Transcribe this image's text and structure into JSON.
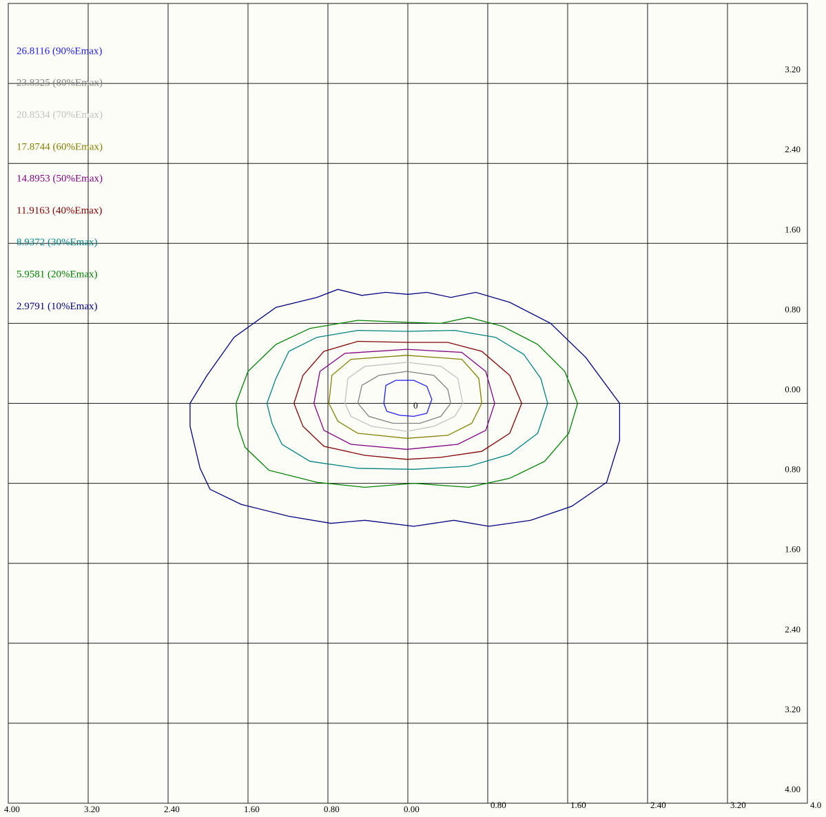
{
  "chart_data": {
    "type": "contour",
    "annotation": "0",
    "xlim": [
      -4,
      4
    ],
    "ylim": [
      -4,
      4
    ],
    "xticks": [
      {
        "value": -4,
        "label": "4.00"
      },
      {
        "value": -3.2,
        "label": "3.20"
      },
      {
        "value": -2.4,
        "label": "2.40"
      },
      {
        "value": -1.6,
        "label": "1.60"
      },
      {
        "value": -0.8,
        "label": "0.80"
      },
      {
        "value": 0,
        "label": "0.00"
      },
      {
        "value": 0.8,
        "label": "0.80"
      },
      {
        "value": 1.6,
        "label": "1.60"
      },
      {
        "value": 2.4,
        "label": "2.40"
      },
      {
        "value": 3.2,
        "label": "3.20"
      },
      {
        "value": 4,
        "label": "4.0"
      }
    ],
    "yticks": [
      {
        "value": 3.2,
        "label": "3.20"
      },
      {
        "value": 2.4,
        "label": "2.40"
      },
      {
        "value": 1.6,
        "label": "1.60"
      },
      {
        "value": 0.8,
        "label": "0.80"
      },
      {
        "value": 0,
        "label": "0.00"
      },
      {
        "value": -0.8,
        "label": "0.80"
      },
      {
        "value": -1.6,
        "label": "1.60"
      },
      {
        "value": -2.4,
        "label": "2.40"
      },
      {
        "value": -3.2,
        "label": "3.20"
      },
      {
        "value": -4,
        "label": "4.00"
      }
    ],
    "grid": true,
    "legend": "upper left",
    "series": [
      {
        "name": "26.8116 (90%Emax)",
        "color": "#1c1cf0",
        "x": [
          -0.24,
          -0.22,
          -0.12,
          0.06,
          0.19,
          0.24,
          0.19,
          0.06,
          -0.08,
          -0.21
        ],
        "y": [
          0,
          0.18,
          0.23,
          0.23,
          0.17,
          0.04,
          -0.1,
          -0.13,
          -0.12,
          -0.08
        ]
      },
      {
        "name": "23.8325 (80%Emax)",
        "color": "#808080",
        "x": [
          -0.5,
          -0.46,
          -0.29,
          -0.01,
          0.26,
          0.4,
          0.43,
          0.33,
          0.12,
          -0.15,
          -0.39
        ],
        "y": [
          0,
          0.18,
          0.28,
          0.32,
          0.28,
          0.14,
          0,
          -0.13,
          -0.2,
          -0.2,
          -0.13
        ]
      },
      {
        "name": "20.8534 (70%Emax)",
        "color": "#c0c0c0",
        "x": [
          -0.63,
          -0.6,
          -0.43,
          -0.01,
          0.33,
          0.5,
          0.55,
          0.47,
          0.26,
          -0.01,
          -0.36,
          -0.57
        ],
        "y": [
          0,
          0.25,
          0.37,
          0.41,
          0.37,
          0.25,
          0,
          -0.13,
          -0.23,
          -0.28,
          -0.23,
          -0.13
        ]
      },
      {
        "name": "17.8744 (60%Emax)",
        "color": "#808000",
        "x": [
          -0.79,
          -0.76,
          -0.57,
          -0.01,
          0.54,
          0.71,
          0.74,
          0.64,
          0.4,
          -0.01,
          -0.5,
          -0.7
        ],
        "y": [
          0,
          0.28,
          0.44,
          0.48,
          0.44,
          0.25,
          0,
          -0.2,
          -0.32,
          -0.35,
          -0.3,
          -0.18
        ]
      },
      {
        "name": "14.8953 (50%Emax)",
        "color": "#800080",
        "x": [
          -0.94,
          -0.88,
          -0.63,
          -0.01,
          0.54,
          0.78,
          0.87,
          0.78,
          0.5,
          -0.01,
          -0.57,
          -0.84
        ],
        "y": [
          0,
          0.32,
          0.5,
          0.54,
          0.51,
          0.32,
          0,
          -0.27,
          -0.41,
          -0.46,
          -0.41,
          -0.27
        ]
      },
      {
        "name": "11.9163 (40%Emax)",
        "color": "#800000",
        "x": [
          -1.14,
          -1.05,
          -0.84,
          -0.5,
          -0.01,
          0.4,
          0.74,
          1.02,
          1.14,
          1.02,
          0.74,
          0.33,
          -0.01,
          -0.43,
          -0.84,
          -1.05
        ],
        "y": [
          0,
          0.28,
          0.52,
          0.62,
          0.61,
          0.61,
          0.52,
          0.28,
          0,
          -0.3,
          -0.48,
          -0.54,
          -0.56,
          -0.52,
          -0.43,
          -0.23
        ]
      },
      {
        "name": "8.9372 (30%Emax)",
        "color": "#008080",
        "x": [
          -1.41,
          -1.32,
          -1.19,
          -0.91,
          -0.5,
          -0.01,
          0.47,
          0.88,
          1.16,
          1.33,
          1.4,
          1.3,
          1.02,
          0.61,
          0.06,
          -0.5,
          -0.98,
          -1.26,
          -1.36
        ],
        "y": [
          0,
          0.25,
          0.52,
          0.66,
          0.73,
          0.72,
          0.73,
          0.66,
          0.49,
          0.25,
          0,
          -0.3,
          -0.51,
          -0.63,
          -0.66,
          -0.65,
          -0.58,
          -0.41,
          -0.2
        ]
      },
      {
        "name": "5.9581 (20%Emax)",
        "color": "#008000",
        "x": [
          -1.72,
          -1.6,
          -1.32,
          -0.98,
          -0.5,
          -0.01,
          0.33,
          0.61,
          0.95,
          1.3,
          1.57,
          1.7,
          1.61,
          1.37,
          1.02,
          0.61,
          0.06,
          -0.43,
          -0.91,
          -1.39,
          -1.63,
          -1.7
        ],
        "y": [
          0,
          0.32,
          0.59,
          0.75,
          0.83,
          0.81,
          0.8,
          0.86,
          0.77,
          0.59,
          0.32,
          0,
          -0.3,
          -0.58,
          -0.75,
          -0.84,
          -0.8,
          -0.84,
          -0.79,
          -0.67,
          -0.44,
          -0.23
        ]
      },
      {
        "name": "2.9791 (10%Emax)",
        "color": "#000080",
        "x": [
          -2.18,
          -2.01,
          -1.74,
          -1.32,
          -0.91,
          -0.7,
          -0.46,
          -0.22,
          0,
          0.19,
          0.43,
          0.68,
          1.02,
          1.43,
          1.78,
          2.12,
          2.12,
          1.99,
          1.64,
          1.23,
          0.81,
          0.46,
          0.06,
          -0.43,
          -0.77,
          -1.19,
          -1.67,
          -1.98,
          -2.08,
          -2.18
        ],
        "y": [
          0,
          0.28,
          0.66,
          0.96,
          1.06,
          1.14,
          1.08,
          1.11,
          1.09,
          1.11,
          1.06,
          1.11,
          1.01,
          0.8,
          0.46,
          0,
          -0.37,
          -0.79,
          -1.03,
          -1.17,
          -1.23,
          -1.17,
          -1.23,
          -1.17,
          -1.2,
          -1.13,
          -1.01,
          -0.86,
          -0.65,
          -0.23
        ]
      }
    ]
  }
}
